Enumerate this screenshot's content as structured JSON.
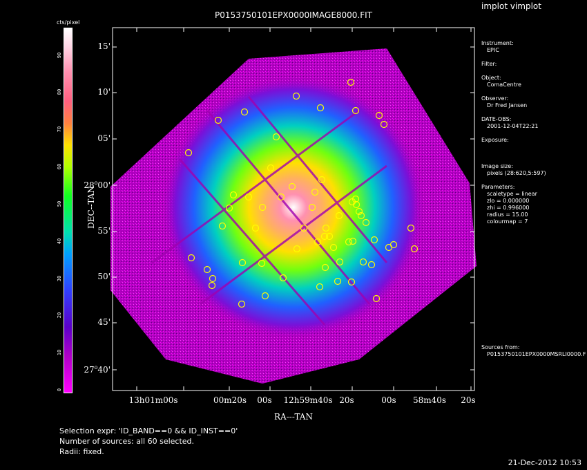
{
  "app": {
    "title": "implot vimplot"
  },
  "plot": {
    "title": "P0153750101EPX0000IMAGE8000.FIT",
    "xlabel": "RA---TAN",
    "ylabel": "DEC--TAN",
    "dec_ticks": [
      {
        "main": "15'",
        "sup": ""
      },
      {
        "main": "10'",
        "sup": ""
      },
      {
        "main": "05'",
        "sup": ""
      },
      {
        "main": "28",
        "sup": "o",
        "main2": "00'"
      },
      {
        "main": "55'",
        "sup": ""
      },
      {
        "main": "50'",
        "sup": ""
      },
      {
        "main": "45'",
        "sup": ""
      },
      {
        "main": "27",
        "sup": "o",
        "main2": "40'"
      }
    ],
    "ra_ticks": [
      {
        "parts": [
          [
            "13",
            ""
          ],
          [
            "h",
            ""
          ],
          [
            "01",
            ""
          ],
          [
            "m",
            ""
          ],
          [
            "00",
            ""
          ],
          [
            "s",
            ""
          ]
        ],
        "text": "13h01m00s"
      },
      {
        "text": "00m20s"
      },
      {
        "text": "00s"
      },
      {
        "text": "12h59m40s"
      },
      {
        "text": "20s"
      },
      {
        "text": "00s"
      },
      {
        "text": "58m40s"
      },
      {
        "text": "20s"
      }
    ]
  },
  "colorbar": {
    "unit_label": "cts/pixel",
    "ticks": [
      "0",
      "10",
      "20",
      "30",
      "40",
      "50",
      "60",
      "70",
      "80",
      "90"
    ]
  },
  "info": {
    "instrument_label": "Instrument:",
    "instrument": "EPIC",
    "filter_label": "Filter:",
    "object_label": "Object:",
    "object": "ComaCentre",
    "observer_label": "Observer:",
    "observer": "Dr Fred Jansen",
    "date_label": "DATE-OBS:",
    "date": "2001-12-04T22:21",
    "exposure_label": "Exposure:",
    "image_size_label": "Image size:",
    "image_size": "pixels (28:620,5:597)",
    "parameters_label": "Parameters:",
    "scaletype": "scaletype = linear",
    "zlo": "zlo = 0.000000",
    "zhi": "zhi = 0.996000",
    "radius": "radius = 15.00",
    "colourmap": "colourmap = 7",
    "sources_label": "Sources from:",
    "sources": "P0153750101EPX0000MSRLI0000.F"
  },
  "footer": {
    "line1": "Selection expr: 'ID_BAND==0 && ID_INST==0'",
    "line2": "Number of sources: all 60 selected.",
    "line3": "Radii: fixed."
  },
  "datestamp": "21-Dec-2012 10:53",
  "colors": {
    "background": "#000000",
    "source_circle": "#ffff00",
    "frame": "#ffffff"
  }
}
